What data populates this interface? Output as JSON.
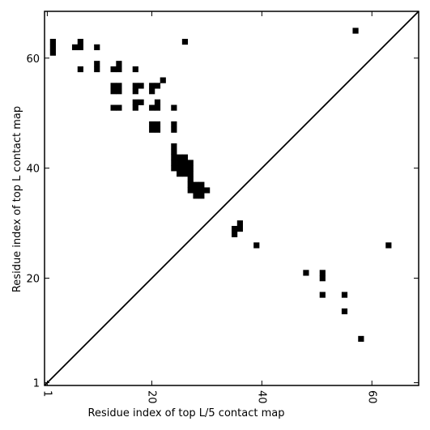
{
  "chart_data": {
    "type": "heatmap",
    "title": "",
    "xlabel": "Residue index of top L/5 contact map",
    "ylabel": "Residue index of top L contact map",
    "xlim": [
      0.5,
      68.5
    ],
    "ylim": [
      0.5,
      68.5
    ],
    "xticks": [
      1,
      20,
      40,
      60
    ],
    "yticks": [
      1,
      20,
      40,
      60
    ],
    "xtick_rotation": -90,
    "diagonal": true,
    "grid": false,
    "upper_triangle_contacts": [
      [
        2,
        61
      ],
      [
        2,
        62
      ],
      [
        2,
        63
      ],
      [
        6,
        62
      ],
      [
        7,
        62
      ],
      [
        7,
        63
      ],
      [
        7,
        58
      ],
      [
        10,
        62
      ],
      [
        10,
        58
      ],
      [
        10,
        59
      ],
      [
        13,
        58
      ],
      [
        14,
        58
      ],
      [
        14,
        59
      ],
      [
        13,
        54
      ],
      [
        14,
        54
      ],
      [
        13,
        55
      ],
      [
        14,
        55
      ],
      [
        13,
        51
      ],
      [
        14,
        51
      ],
      [
        17,
        58
      ],
      [
        17,
        55
      ],
      [
        18,
        55
      ],
      [
        17,
        54
      ],
      [
        17,
        52
      ],
      [
        18,
        52
      ],
      [
        17,
        51
      ],
      [
        20,
        55
      ],
      [
        21,
        55
      ],
      [
        20,
        54
      ],
      [
        22,
        56
      ],
      [
        20,
        51
      ],
      [
        21,
        51
      ],
      [
        21,
        52
      ],
      [
        20,
        47
      ],
      [
        21,
        47
      ],
      [
        20,
        48
      ],
      [
        21,
        48
      ],
      [
        24,
        51
      ],
      [
        24,
        47
      ],
      [
        24,
        48
      ],
      [
        24,
        40
      ],
      [
        24,
        41
      ],
      [
        24,
        42
      ],
      [
        24,
        43
      ],
      [
        24,
        44
      ],
      [
        25,
        39
      ],
      [
        25,
        40
      ],
      [
        25,
        41
      ],
      [
        25,
        42
      ],
      [
        26,
        39
      ],
      [
        26,
        40
      ],
      [
        26,
        41
      ],
      [
        26,
        42
      ],
      [
        27,
        36
      ],
      [
        27,
        37
      ],
      [
        27,
        38
      ],
      [
        27,
        39
      ],
      [
        27,
        40
      ],
      [
        27,
        41
      ],
      [
        28,
        35
      ],
      [
        28,
        36
      ],
      [
        28,
        37
      ],
      [
        29,
        35
      ],
      [
        29,
        36
      ],
      [
        29,
        37
      ],
      [
        30,
        36
      ],
      [
        26,
        63
      ],
      [
        57,
        65
      ],
      [
        35,
        28
      ],
      [
        35,
        29
      ],
      [
        36,
        29
      ],
      [
        36,
        30
      ]
    ],
    "lower_triangle_contacts": [
      [
        39,
        26
      ],
      [
        48,
        21
      ],
      [
        51,
        20
      ],
      [
        51,
        21
      ],
      [
        51,
        17
      ],
      [
        55,
        17
      ],
      [
        55,
        14
      ],
      [
        58,
        9
      ],
      [
        63,
        26
      ]
    ]
  }
}
